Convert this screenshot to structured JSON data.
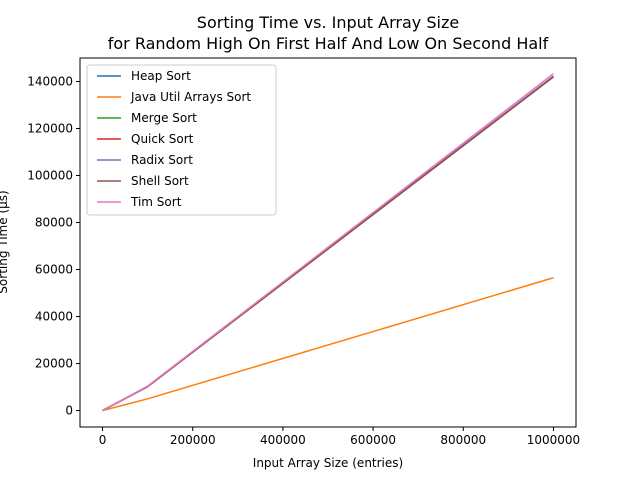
{
  "chart_data": {
    "type": "line",
    "title": "Sorting Time vs. Input Array Size",
    "subtitle": "for Random High On First Half And Low On Second Half",
    "xlabel": "Input Array Size (entries)",
    "ylabel": "Sorting Time (µs)",
    "xlim": [
      -50000,
      1050000
    ],
    "ylim": [
      -7000,
      150000
    ],
    "x": [
      0,
      100000,
      1000000
    ],
    "xticks": [
      0,
      200000,
      400000,
      600000,
      800000,
      1000000
    ],
    "xtick_labels": [
      "0",
      "200000",
      "400000",
      "600000",
      "800000",
      "1000000"
    ],
    "yticks": [
      0,
      20000,
      40000,
      60000,
      80000,
      100000,
      120000,
      140000
    ],
    "ytick_labels": [
      "0",
      "20000",
      "40000",
      "60000",
      "80000",
      "100000",
      "120000",
      "140000"
    ],
    "grid": false,
    "legend_position": "top-left",
    "series": [
      {
        "name": "Heap Sort",
        "color": "#1f77b4",
        "values": [
          0,
          10200,
          142000
        ]
      },
      {
        "name": "Java Util Arrays Sort",
        "color": "#ff7f0e",
        "values": [
          0,
          5000,
          56500
        ]
      },
      {
        "name": "Merge Sort",
        "color": "#2ca02c",
        "values": [
          0,
          10200,
          142000
        ]
      },
      {
        "name": "Quick Sort",
        "color": "#d62728",
        "values": [
          0,
          10200,
          142000
        ]
      },
      {
        "name": "Radix Sort",
        "color": "#9467bd",
        "values": [
          0,
          10300,
          142300
        ]
      },
      {
        "name": "Shell Sort",
        "color": "#8c564b",
        "values": [
          0,
          10200,
          142000
        ]
      },
      {
        "name": "Tim Sort",
        "color": "#e377c2",
        "values": [
          0,
          10400,
          143300
        ]
      }
    ]
  }
}
